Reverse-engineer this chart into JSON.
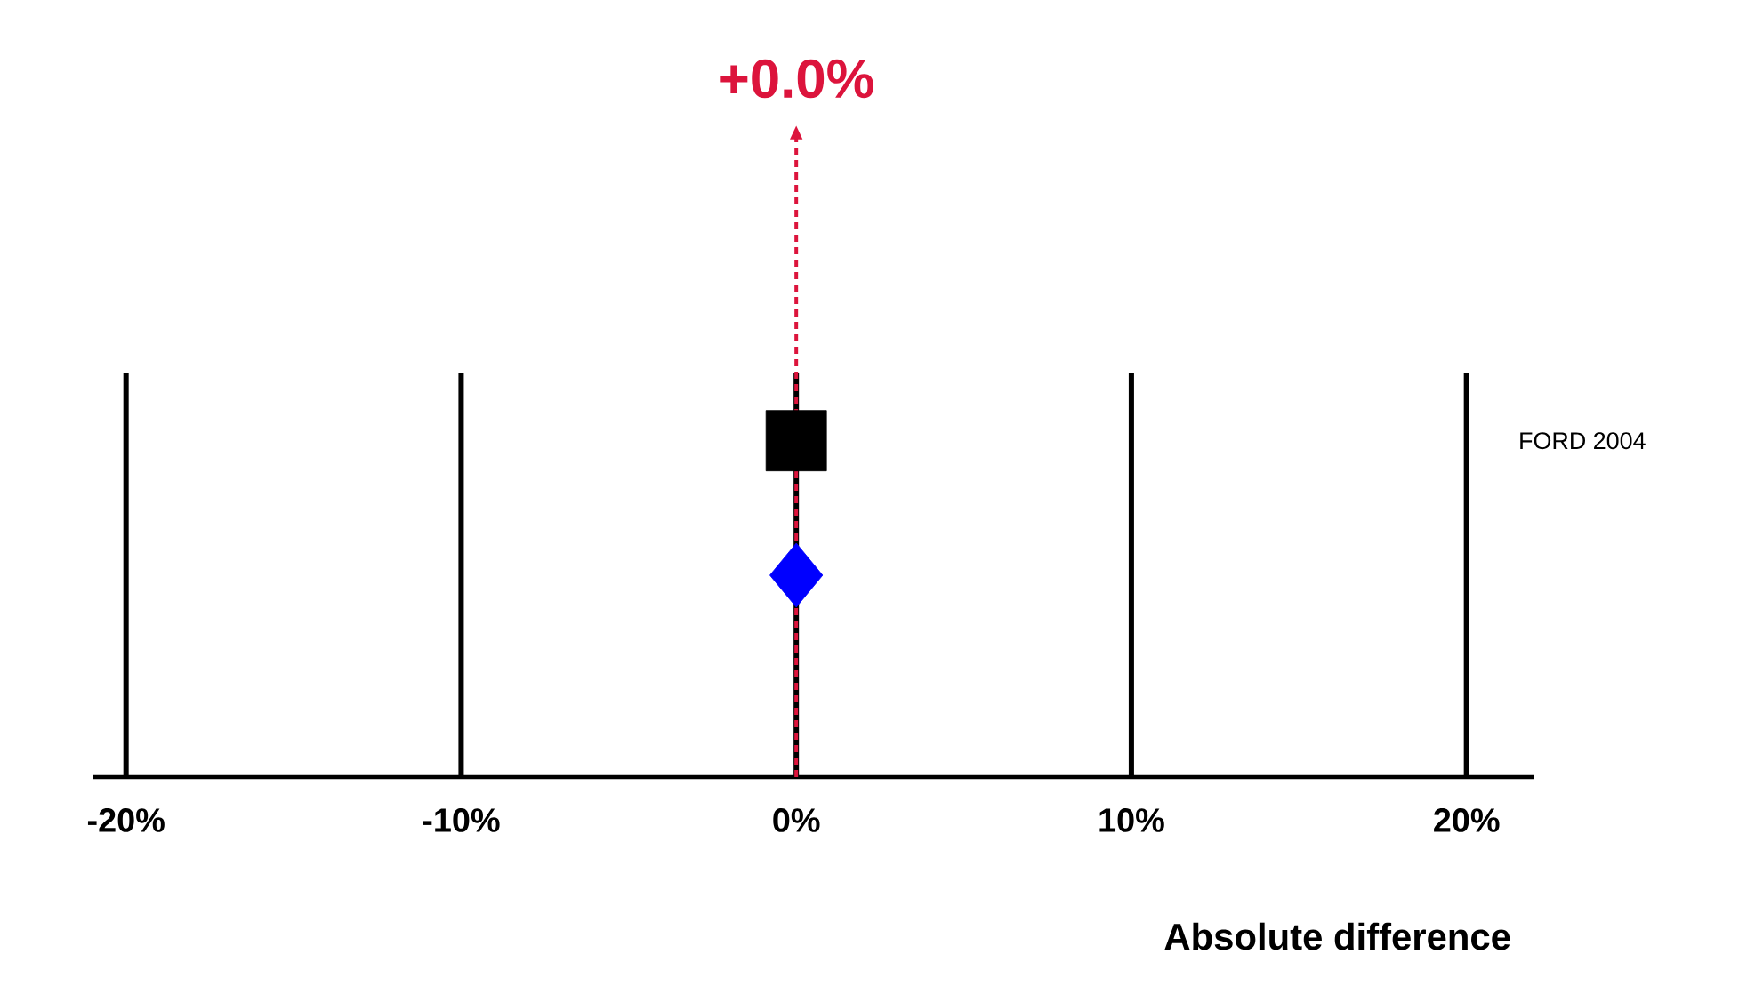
{
  "chart_data": {
    "type": "scatter",
    "orientation": "horizontal",
    "categories": [
      "FORD 2004",
      null,
      null
    ],
    "series": [
      {
        "color": "#000000",
        "marker": "square",
        "values": [
          0,
          null,
          null
        ]
      },
      {
        "color": "#0000ff",
        "marker": "diamond",
        "values": [
          null,
          0,
          null
        ]
      }
    ],
    "xlim": [
      -21,
      22
    ],
    "xticks": [
      {
        "value": -20,
        "label": "-20%"
      },
      {
        "value": -10,
        "label": "-10%"
      },
      {
        "value": 0,
        "label": "0%"
      },
      {
        "value": 10,
        "label": "10%"
      },
      {
        "value": 20,
        "label": "20%"
      }
    ],
    "xlabel": "Absolute difference",
    "grid": "x",
    "ref_lines": [
      {
        "axis": "x",
        "value": 0,
        "label": "+0.0%",
        "color": "#dc143c",
        "line_style": "dashed"
      }
    ]
  }
}
